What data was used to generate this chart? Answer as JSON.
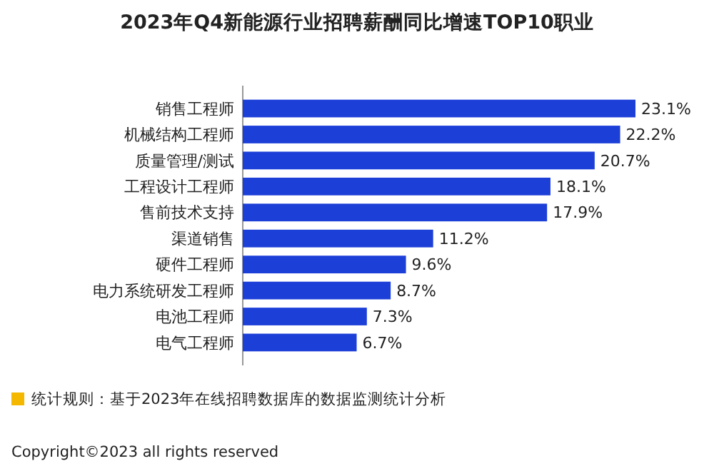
{
  "chart_data": {
    "type": "bar",
    "orientation": "horizontal",
    "title": "2023年Q4新能源行业招聘薪酬同比增速TOP10职业",
    "categories": [
      "销售工程师",
      "机械结构工程师",
      "质量管理/测试",
      "工程设计工程师",
      "售前技术支持",
      "渠道销售",
      "硬件工程师",
      "电力系统研发工程师",
      "电池工程师",
      "电气工程师"
    ],
    "values": [
      23.1,
      22.2,
      20.7,
      18.1,
      17.9,
      11.2,
      9.6,
      8.7,
      7.3,
      6.7
    ],
    "value_labels": [
      "23.1%",
      "22.2%",
      "20.7%",
      "18.1%",
      "17.9%",
      "11.2%",
      "9.6%",
      "8.7%",
      "7.3%",
      "6.7%"
    ],
    "color": "#1c3fd8",
    "grid": false,
    "annotations": [
      "统计规则：基于2023年在线招聘数据库的数据监测统计分析",
      "Copyright©2023 all rights reserved"
    ]
  }
}
